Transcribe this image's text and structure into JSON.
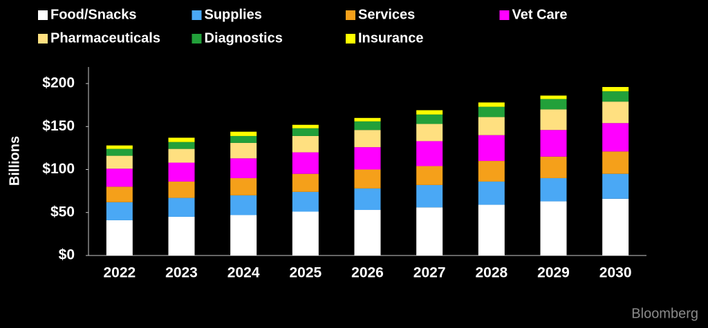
{
  "chart_data": {
    "type": "stacked-bar",
    "y_label": "Billions",
    "source": "Bloomberg",
    "categories": [
      "2022",
      "2023",
      "2024",
      "2025",
      "2026",
      "2027",
      "2028",
      "2029",
      "2030"
    ],
    "series": [
      {
        "name": "Food/Snacks",
        "color": "#ffffff",
        "values": [
          41,
          45,
          47,
          51,
          53,
          56,
          59,
          63,
          66
        ]
      },
      {
        "name": "Supplies",
        "color": "#4aa8f5",
        "values": [
          21,
          22,
          23,
          23,
          25,
          26,
          27,
          27,
          29
        ]
      },
      {
        "name": "Services",
        "color": "#f5a01a",
        "values": [
          18,
          19,
          20,
          21,
          22,
          22,
          24,
          25,
          26
        ]
      },
      {
        "name": "Vet Care",
        "color": "#ff00ff",
        "values": [
          21,
          22,
          23,
          25,
          26,
          29,
          30,
          31,
          33
        ]
      },
      {
        "name": "Pharmaceuticals",
        "color": "#ffe080",
        "values": [
          15,
          16,
          18,
          19,
          20,
          20,
          21,
          24,
          25
        ]
      },
      {
        "name": "Diagnostics",
        "color": "#22a03a",
        "values": [
          8,
          8,
          8,
          9,
          10,
          11,
          12,
          12,
          12
        ]
      },
      {
        "name": "Insurance",
        "color": "#ffff00",
        "values": [
          4,
          5,
          5,
          4,
          4,
          5,
          5,
          4,
          5
        ]
      }
    ],
    "ylim": [
      0,
      220
    ],
    "yticks": [
      {
        "value": 0,
        "label": "$0"
      },
      {
        "value": 50,
        "label": "$50"
      },
      {
        "value": 100,
        "label": "$100"
      },
      {
        "value": 150,
        "label": "$150"
      },
      {
        "value": 200,
        "label": "$200"
      }
    ],
    "grid": false
  }
}
